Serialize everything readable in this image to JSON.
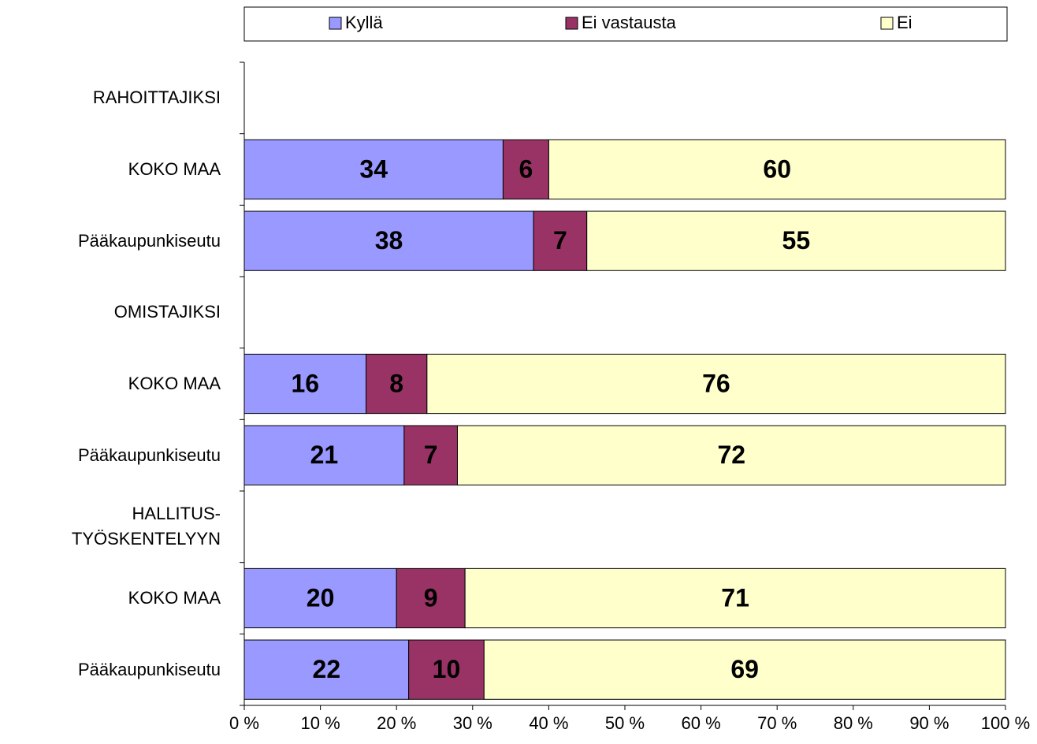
{
  "chart_data": {
    "type": "stacked-bar-horizontal",
    "categories": [
      "RAHOITTAJIKSI",
      "KOKO MAA",
      "Pääkaupunkiseutu",
      "OMISTAJIKSI",
      "KOKO MAA",
      "Pääkaupunkiseutu",
      "HALLITUS-\nTYÖSKENTELYYN",
      "KOKO MAA",
      "Pääkaupunkiseutu"
    ],
    "series": [
      {
        "name": "Kyllä",
        "color": "#9999ff",
        "values": [
          null,
          34,
          38,
          null,
          16,
          21,
          null,
          20,
          21.6
        ],
        "value_labels": [
          null,
          "34",
          "38",
          null,
          "16",
          "21",
          null,
          "20",
          "22"
        ]
      },
      {
        "name": "Ei vastausta",
        "color": "#993366",
        "values": [
          null,
          6,
          7,
          null,
          8,
          7,
          null,
          9,
          9.9
        ],
        "value_labels": [
          null,
          "6",
          "7",
          null,
          "8",
          "7",
          null,
          "9",
          "10"
        ]
      },
      {
        "name": "Ei",
        "color": "#ffffcc",
        "values": [
          null,
          60,
          55,
          null,
          76,
          72,
          null,
          71,
          68.5
        ],
        "value_labels": [
          null,
          "60",
          "55",
          null,
          "76",
          "72",
          null,
          "71",
          "69"
        ]
      }
    ],
    "xlim": [
      0,
      100
    ],
    "xticks": [
      {
        "value": 0,
        "label": "0 %"
      },
      {
        "value": 10,
        "label": "10 %"
      },
      {
        "value": 20,
        "label": "20 %"
      },
      {
        "value": 30,
        "label": "30 %"
      },
      {
        "value": 40,
        "label": "40 %"
      },
      {
        "value": 50,
        "label": "50 %"
      },
      {
        "value": 60,
        "label": "60 %"
      },
      {
        "value": 70,
        "label": "70 %"
      },
      {
        "value": 80,
        "label": "80 %"
      },
      {
        "value": 90,
        "label": "90 %"
      },
      {
        "value": 100,
        "label": "100 %"
      }
    ],
    "legend": "top"
  }
}
